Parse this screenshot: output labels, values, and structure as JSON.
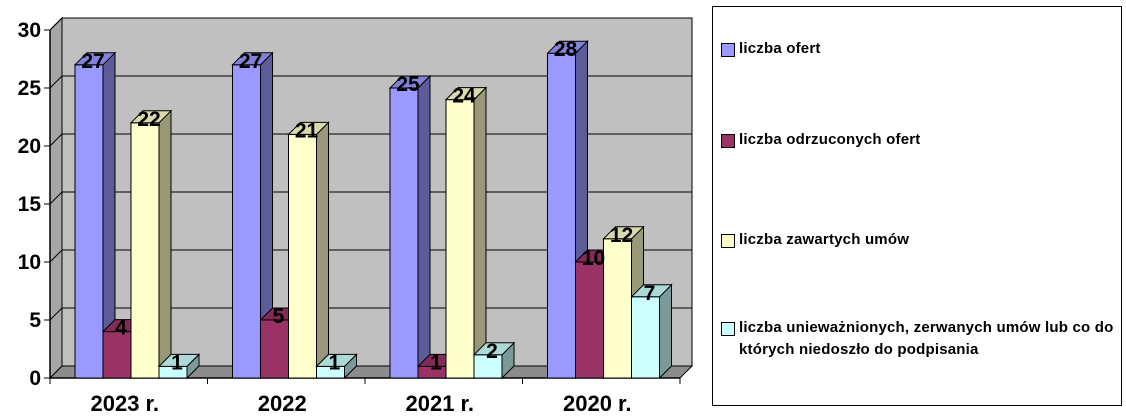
{
  "chart_data": {
    "type": "bar",
    "title": "",
    "xlabel": "",
    "ylabel": "",
    "ylim": [
      0,
      30
    ],
    "yticks": [
      0,
      5,
      10,
      15,
      20,
      25,
      30
    ],
    "grid": true,
    "legend_position": "right",
    "categories": [
      "2023 r.",
      "2022",
      "2021 r.",
      "2020 r."
    ],
    "series": [
      {
        "name": "liczba ofert",
        "values": [
          27,
          27,
          25,
          28
        ],
        "color": "#9999ff"
      },
      {
        "name": "liczba odrzuconych ofert",
        "values": [
          4,
          5,
          1,
          10
        ],
        "color": "#993366"
      },
      {
        "name": "liczba zawartych umów",
        "values": [
          22,
          21,
          24,
          12
        ],
        "color": "#ffffcc"
      },
      {
        "name": "liczba unieważnionych, zerwanych umów lub co do których niedoszło do podpisania",
        "values": [
          1,
          1,
          2,
          7
        ],
        "color": "#ccffff"
      }
    ],
    "background_color": "#c0c0c0"
  },
  "legend": {
    "items": [
      "liczba ofert",
      "liczba odrzuconych ofert",
      "liczba zawartych umów",
      "liczba unieważnionych, zerwanych umów lub co do których niedoszło do podpisania"
    ]
  }
}
